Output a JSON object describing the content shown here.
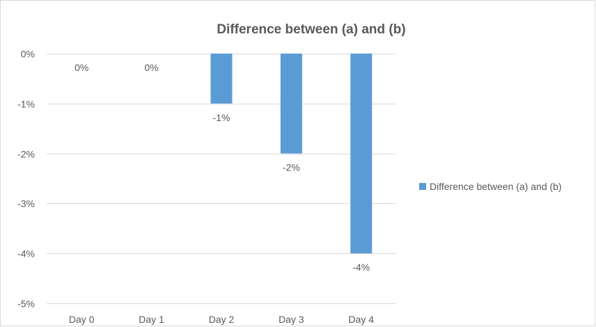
{
  "chart_data": {
    "type": "bar",
    "title": "Difference between (a) and (b)",
    "categories": [
      "Day 0",
      "Day 1",
      "Day 2",
      "Day 3",
      "Day 4"
    ],
    "series": [
      {
        "name": "Difference between (a) and (b)",
        "values": [
          0,
          0,
          -1,
          -2,
          -4
        ],
        "data_labels": [
          "0%",
          "0%",
          "-1%",
          "-2%",
          "-4%"
        ],
        "color": "#5b9bd5"
      }
    ],
    "ylim": [
      -5,
      0
    ],
    "y_ticks": [
      0,
      -1,
      -2,
      -3,
      -4,
      -5
    ],
    "y_tick_labels": [
      "0%",
      "-1%",
      "-2%",
      "-3%",
      "-4%",
      "-5%"
    ],
    "xlabel": "",
    "ylabel": "",
    "grid": true,
    "legend_position": "right"
  }
}
